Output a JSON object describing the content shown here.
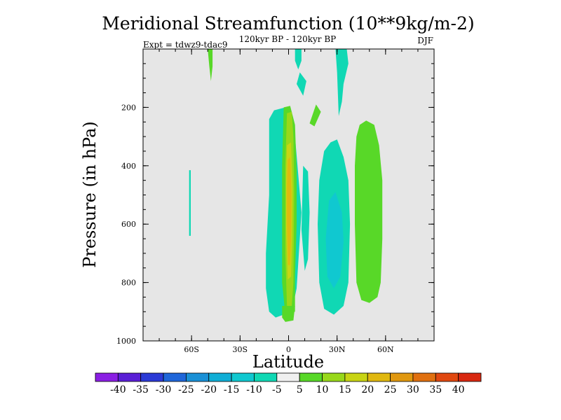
{
  "chart_data": {
    "type": "contour",
    "title": "Meridional Streamfunction (10**9kg/m-2)",
    "subtitle": "120kyr BP - 120kyr BP",
    "left_label": "Expt = tdwz9-tdac9",
    "right_label": "DJF",
    "xlabel": "Latitude",
    "ylabel": "Pressure (in hPa)",
    "xlim": [
      -90,
      90
    ],
    "ylim": [
      1000,
      0
    ],
    "x_ticks": [
      {
        "value": -60,
        "label": "60S"
      },
      {
        "value": -30,
        "label": "30S"
      },
      {
        "value": 0,
        "label": "0"
      },
      {
        "value": 30,
        "label": "30N"
      },
      {
        "value": 60,
        "label": "60N"
      }
    ],
    "y_ticks": [
      {
        "value": 200,
        "label": "200"
      },
      {
        "value": 400,
        "label": "400"
      },
      {
        "value": 600,
        "label": "600"
      },
      {
        "value": 800,
        "label": "800"
      },
      {
        "value": 1000,
        "label": "1000"
      }
    ],
    "background_color": "#e6e6e6",
    "colorbar": {
      "levels": [
        "-40",
        "-35",
        "-30",
        "-25",
        "-20",
        "-15",
        "-10",
        "-5",
        "5",
        "10",
        "15",
        "20",
        "25",
        "30",
        "35",
        "40"
      ],
      "colors": [
        "#8a1fe3",
        "#5a1fd6",
        "#2b3ad6",
        "#1f66d9",
        "#1a90d6",
        "#10aed6",
        "#10c8d0",
        "#10d8b4",
        "#f0f0f0",
        "#58d828",
        "#98d81a",
        "#c8d414",
        "#e0b810",
        "#e09810",
        "#e07010",
        "#e04810",
        "#d82810"
      ]
    },
    "regions": [
      {
        "name": "cyan-top-eq",
        "value": -7,
        "color": "#10d8b4",
        "points": [
          [
            4,
            0
          ],
          [
            8,
            0
          ],
          [
            8,
            40
          ],
          [
            6,
            70
          ],
          [
            4,
            40
          ]
        ]
      },
      {
        "name": "cyan-eq-small",
        "value": -7,
        "color": "#10d8b4",
        "points": [
          [
            7,
            80
          ],
          [
            11,
            110
          ],
          [
            9,
            160
          ],
          [
            5,
            120
          ]
        ]
      },
      {
        "name": "cyan-upper-ne",
        "value": -7,
        "color": "#10d8b4",
        "points": [
          [
            29,
            0
          ],
          [
            36,
            0
          ],
          [
            37,
            50
          ],
          [
            34,
            120
          ],
          [
            33,
            180
          ],
          [
            31,
            230
          ],
          [
            30,
            80
          ]
        ]
      },
      {
        "name": "green-left-top",
        "value": 7,
        "color": "#58d828",
        "points": [
          [
            -50,
            0
          ],
          [
            -47,
            0
          ],
          [
            -47,
            60
          ],
          [
            -48,
            110
          ],
          [
            -49,
            60
          ]
        ]
      },
      {
        "name": "green-small-n",
        "value": 7,
        "color": "#58d828",
        "points": [
          [
            17,
            190
          ],
          [
            20,
            215
          ],
          [
            16,
            265
          ],
          [
            13,
            255
          ]
        ]
      },
      {
        "name": "cyan-thin-sh",
        "value": -7,
        "color": "#10d8b4",
        "points": [
          [
            -61.5,
            415
          ],
          [
            -60.5,
            415
          ],
          [
            -60.5,
            640
          ],
          [
            -61.5,
            640
          ]
        ]
      },
      {
        "name": "cyan-big-west",
        "value": -7,
        "color": "#10d8b4",
        "points": [
          [
            -12,
            240
          ],
          [
            -9,
            210
          ],
          [
            -2,
            200
          ],
          [
            4,
            300
          ],
          [
            8,
            560
          ],
          [
            5,
            820
          ],
          [
            2,
            900
          ],
          [
            -8,
            920
          ],
          [
            -12,
            900
          ],
          [
            -14,
            820
          ],
          [
            -14,
            700
          ],
          [
            -12,
            500
          ]
        ]
      },
      {
        "name": "cyan-band-se",
        "value": -7,
        "color": "#10d8b4",
        "points": [
          [
            9,
            400
          ],
          [
            12,
            420
          ],
          [
            13,
            560
          ],
          [
            12,
            720
          ],
          [
            10,
            760
          ],
          [
            8,
            620
          ]
        ]
      },
      {
        "name": "cyan-ne-large",
        "value": -7,
        "color": "#10d8b4",
        "points": [
          [
            22,
            350
          ],
          [
            26,
            320
          ],
          [
            30,
            310
          ],
          [
            34,
            370
          ],
          [
            37,
            450
          ],
          [
            38,
            600
          ],
          [
            37,
            800
          ],
          [
            34,
            880
          ],
          [
            28,
            910
          ],
          [
            22,
            890
          ],
          [
            19,
            800
          ],
          [
            18,
            600
          ],
          [
            19,
            450
          ]
        ]
      },
      {
        "name": "cyan-ne-dark",
        "value": -12,
        "color": "#10c8d0",
        "points": [
          [
            25,
            520
          ],
          [
            29,
            490
          ],
          [
            33,
            560
          ],
          [
            34,
            660
          ],
          [
            32,
            780
          ],
          [
            28,
            820
          ],
          [
            24,
            780
          ],
          [
            23,
            650
          ]
        ]
      },
      {
        "name": "green-big-west",
        "value": 7,
        "color": "#58d828",
        "points": [
          [
            -3,
            200
          ],
          [
            1,
            195
          ],
          [
            4,
            260
          ],
          [
            5,
            420
          ],
          [
            5,
            600
          ],
          [
            4,
            780
          ],
          [
            4,
            900
          ],
          [
            -2,
            910
          ],
          [
            -4,
            800
          ],
          [
            -4,
            600
          ],
          [
            -4,
            400
          ]
        ]
      },
      {
        "name": "lime-column",
        "value": 12,
        "color": "#98d81a",
        "points": [
          [
            -1,
            220
          ],
          [
            2,
            215
          ],
          [
            3,
            300
          ],
          [
            3.5,
            500
          ],
          [
            3,
            800
          ],
          [
            2,
            880
          ],
          [
            -1,
            880
          ],
          [
            -2,
            700
          ],
          [
            -2,
            400
          ]
        ]
      },
      {
        "name": "yellow-column",
        "value": 17,
        "color": "#c8d414",
        "points": [
          [
            -1,
            330
          ],
          [
            1.5,
            320
          ],
          [
            2.5,
            480
          ],
          [
            2.2,
            650
          ],
          [
            1.5,
            780
          ],
          [
            -0.5,
            790
          ],
          [
            -1.5,
            620
          ],
          [
            -1.5,
            450
          ]
        ]
      },
      {
        "name": "orange-core",
        "value": 22,
        "color": "#e0b810",
        "points": [
          [
            -0.5,
            380
          ],
          [
            1,
            370
          ],
          [
            1.8,
            500
          ],
          [
            1.5,
            650
          ],
          [
            0.8,
            740
          ],
          [
            -0.3,
            740
          ],
          [
            -1,
            600
          ],
          [
            -1,
            470
          ]
        ]
      },
      {
        "name": "green-foot",
        "value": 7,
        "color": "#58d828",
        "points": [
          [
            -4,
            880
          ],
          [
            4,
            880
          ],
          [
            3,
            930
          ],
          [
            -2,
            935
          ],
          [
            -4,
            920
          ]
        ]
      },
      {
        "name": "green-east",
        "value": 7,
        "color": "#58d828",
        "points": [
          [
            42,
            300
          ],
          [
            44,
            260
          ],
          [
            48,
            245
          ],
          [
            53,
            260
          ],
          [
            56,
            330
          ],
          [
            58,
            450
          ],
          [
            58,
            650
          ],
          [
            57,
            800
          ],
          [
            55,
            850
          ],
          [
            50,
            870
          ],
          [
            45,
            860
          ],
          [
            42,
            800
          ],
          [
            41,
            600
          ],
          [
            41,
            400
          ]
        ]
      }
    ]
  }
}
